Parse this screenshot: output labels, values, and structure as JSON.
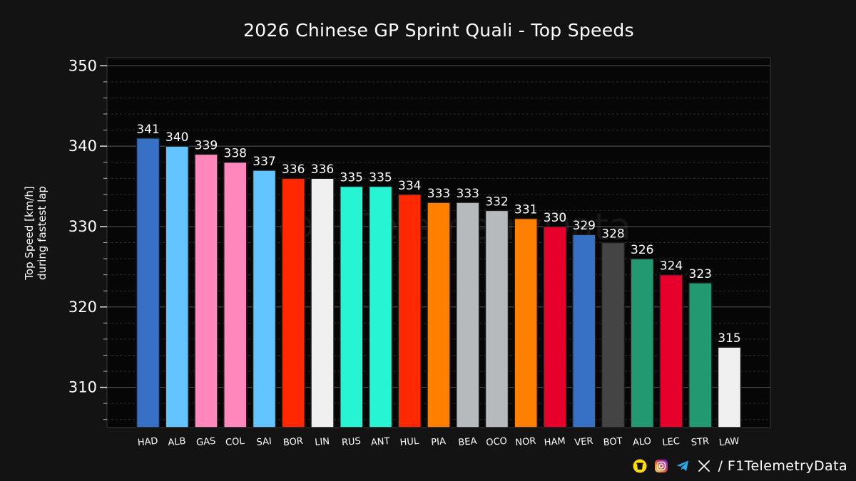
{
  "chart_data": {
    "type": "bar",
    "title": "2026 Chinese GP Sprint Quali - Top Speeds",
    "ylabel": "Top Speed [km/h]\nduring fastest lap",
    "xlabel": "",
    "ylim": [
      305,
      351
    ],
    "yticks": [
      310,
      320,
      330,
      340,
      350
    ],
    "grid": true,
    "categories": [
      "HAD",
      "ALB",
      "GAS",
      "COL",
      "SAI",
      "BOR",
      "LIN",
      "RUS",
      "ANT",
      "HUL",
      "PIA",
      "BEA",
      "OCO",
      "NOR",
      "HAM",
      "VER",
      "BOT",
      "ALO",
      "LEC",
      "STR",
      "LAW"
    ],
    "values": [
      341,
      340,
      339,
      338,
      337,
      336,
      336,
      335,
      335,
      334,
      333,
      333,
      332,
      331,
      330,
      329,
      328,
      326,
      324,
      323,
      315
    ],
    "colors": [
      "#3671C6",
      "#64C4FF",
      "#FF87BC",
      "#FF87BC",
      "#64C4FF",
      "#FF2800",
      "#F0F0F0",
      "#27F4D2",
      "#27F4D2",
      "#FF2800",
      "#FF8000",
      "#B6BABD",
      "#B6BABD",
      "#FF8000",
      "#E8002D",
      "#3671C6",
      "#444444",
      "#229971",
      "#E8002D",
      "#229971",
      "#F0F0F0"
    ],
    "watermark": "@F1TelemetryData"
  },
  "footer": {
    "text": "/ F1TelemetryData",
    "icons": [
      "buymeacoffee-icon",
      "instagram-icon",
      "telegram-icon",
      "x-icon"
    ]
  }
}
